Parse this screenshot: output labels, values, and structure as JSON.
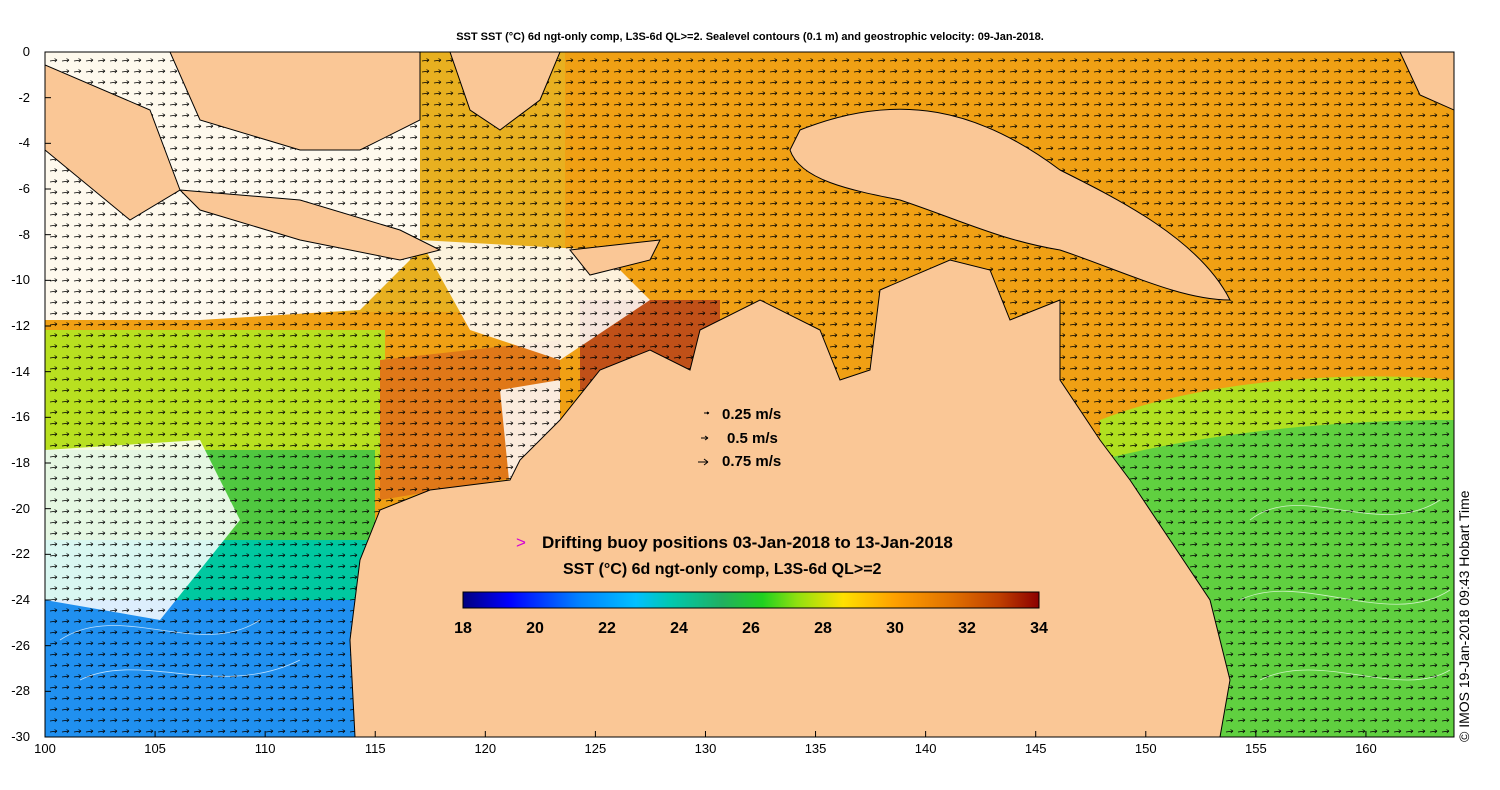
{
  "title": "SST SST (°C) 6d ngt-only comp, L3S-6d QL>=2. Sealevel contours (0.1 m) and geostrophic velocity: 09-Jan-2018.",
  "map": {
    "lon_range": [
      100,
      164
    ],
    "lat_range": [
      -30,
      0
    ],
    "y_ticks": [
      "0",
      "-2",
      "-4",
      "-6",
      "-8",
      "-10",
      "-12",
      "-14",
      "-16",
      "-18",
      "-20",
      "-22",
      "-24",
      "-26",
      "-28",
      "-30"
    ],
    "x_ticks": [
      "100",
      "105",
      "110",
      "115",
      "120",
      "125",
      "130",
      "135",
      "140",
      "145",
      "150",
      "155",
      "160"
    ],
    "colors": {
      "land": "#fac796",
      "no_data": "#ffffff",
      "coast": "#000000",
      "vectors": "#000000"
    }
  },
  "velocity_legend": [
    {
      "label": "0.25 m/s"
    },
    {
      "label": "0.5 m/s"
    },
    {
      "label": "0.75 m/s"
    }
  ],
  "buoy_legend": {
    "marker": ">",
    "marker_color": "#d400d4",
    "label": "Drifting buoy positions 03-Jan-2018 to 13-Jan-2018"
  },
  "colorbar": {
    "title": "SST (°C) 6d ngt-only comp, L3S-6d QL>=2",
    "range": [
      18,
      34
    ],
    "ticks": [
      "18",
      "20",
      "22",
      "24",
      "26",
      "28",
      "30",
      "32",
      "34"
    ],
    "colormap": [
      "#00007f",
      "#0000ff",
      "#0080ff",
      "#00c0ff",
      "#00c8b0",
      "#20b060",
      "#20d020",
      "#90e010",
      "#ffe000",
      "#ffa000",
      "#e07000",
      "#c04000",
      "#8c0000"
    ]
  },
  "credit": "© IMOS 19-Jan-2018 09:43 Hobart Time"
}
